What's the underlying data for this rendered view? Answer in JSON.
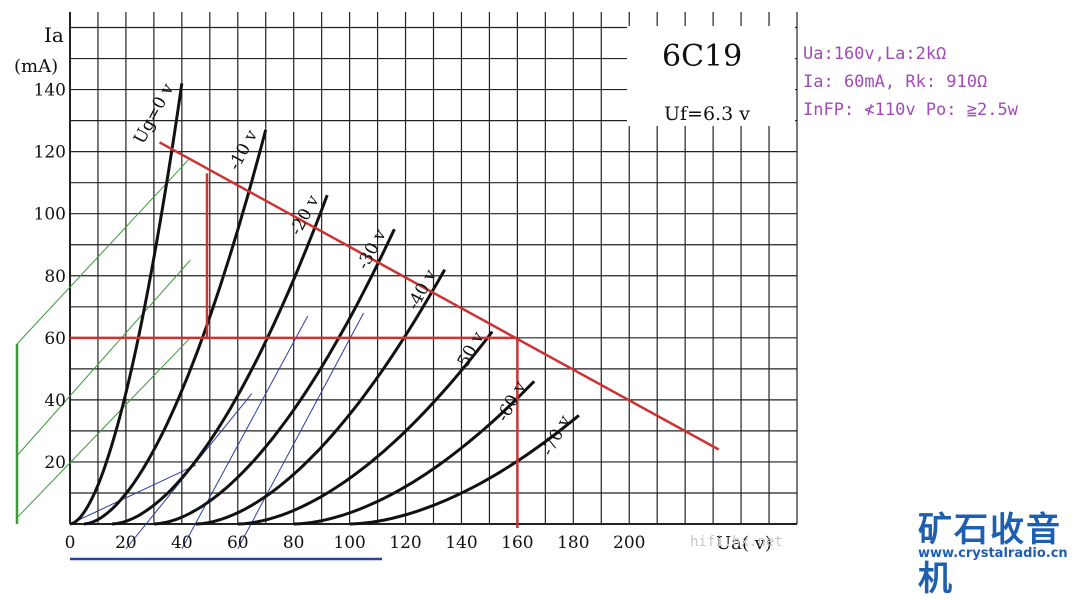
{
  "chart_data": {
    "type": "line",
    "title": "6C19",
    "subtitle": "Uf=6.3 v",
    "ylabel_top": "Ia",
    "ylabel_unit": "(mA)",
    "xlabel": "Ua( v)",
    "x_ticks": [
      "0",
      "20",
      "40",
      "60",
      "80",
      "100",
      "120",
      "140",
      "160",
      "180",
      "200"
    ],
    "x_tick_values": [
      0,
      20,
      40,
      60,
      80,
      100,
      120,
      140,
      160,
      180,
      200
    ],
    "y_ticks": [
      "20",
      "40",
      "60",
      "80",
      "100",
      "120",
      "140"
    ],
    "y_tick_values": [
      20,
      40,
      60,
      80,
      100,
      120,
      140
    ],
    "xlim": [
      0,
      260
    ],
    "ylim": [
      0,
      165
    ],
    "grid": true,
    "series": [
      {
        "name": "Ug=0 v",
        "label": "Ug=0 v",
        "x0": 0,
        "x1": 40,
        "y1": 142
      },
      {
        "name": "-10 v",
        "label": "-10 v",
        "x0": 5,
        "x1": 70,
        "y1": 127
      },
      {
        "name": "-20 v",
        "label": "-20 v",
        "x0": 15,
        "x1": 92,
        "y1": 106
      },
      {
        "name": "-30 v",
        "label": "-30 v",
        "x0": 30,
        "x1": 116,
        "y1": 95
      },
      {
        "name": "-40 v",
        "label": "-40 v",
        "x0": 45,
        "x1": 134,
        "y1": 82
      },
      {
        "name": "-50 v",
        "label": "-50 v",
        "x0": 60,
        "x1": 151,
        "y1": 62
      },
      {
        "name": "-60 v",
        "label": "-60 v",
        "x0": 80,
        "x1": 166,
        "y1": 46
      },
      {
        "name": "-70 v",
        "label": "-70 v",
        "x0": 100,
        "x1": 182,
        "y1": 35
      }
    ],
    "load_line": {
      "x": [
        32,
        232
      ],
      "y": [
        123,
        24
      ]
    },
    "operating_point": {
      "x": 160,
      "y": 60
    },
    "colors": {
      "curve": "#111111",
      "grid": "#222222",
      "load": "#cc3333",
      "green": "#3a9a3a",
      "blue": "#2b3fa0",
      "annot": "#a24ab8"
    }
  },
  "annotations": {
    "line1": "Ua:160v,La:2kΩ",
    "line2": "Ia: 60mA, Rk: 910Ω",
    "line3": "InFP: ≮110v Po: ≧2.5w"
  },
  "logo": {
    "text": "矿石收音机",
    "url": "www.crystalradio.cn"
  },
  "watermark": "hifi.hx.net"
}
